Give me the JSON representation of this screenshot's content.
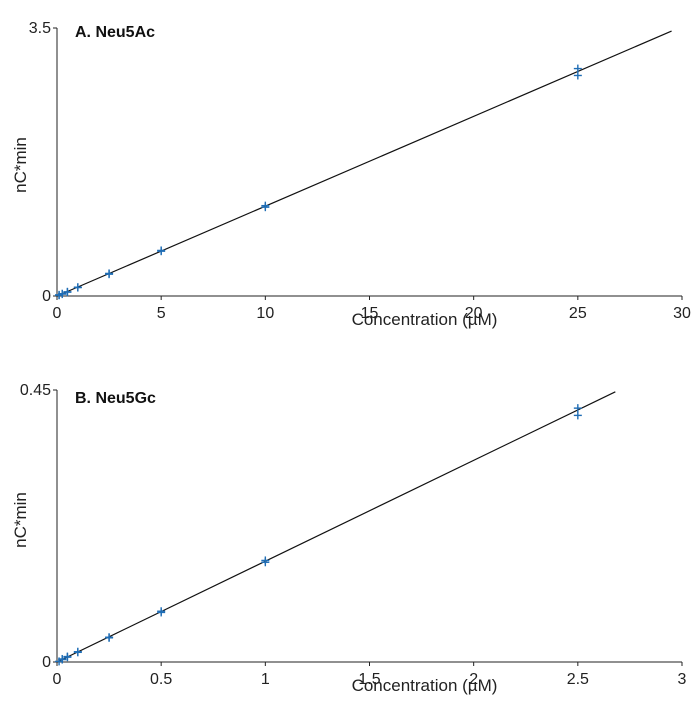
{
  "colors": {
    "marker": "#1f6db5",
    "line": "#111111",
    "axis": "#222222"
  },
  "chart_data": [
    {
      "type": "scatter",
      "title": "A. Neu5Ac",
      "xlabel": "Concentration (µM)",
      "ylabel": "nC*min",
      "xlim": [
        0,
        30
      ],
      "ylim": [
        0,
        3.5
      ],
      "x_ticks": [
        "0",
        "5",
        "10",
        "15",
        "20",
        "25",
        "30"
      ],
      "y_ticks": [
        "0",
        "3.5"
      ],
      "grid": false,
      "series": [
        {
          "x": [
            0.1,
            0.1,
            0.25,
            0.25,
            0.5,
            0.5,
            1,
            1,
            2.5,
            2.5,
            5,
            5,
            10,
            10,
            25,
            25
          ],
          "y": [
            0.01,
            0.015,
            0.025,
            0.03,
            0.05,
            0.055,
            0.11,
            0.115,
            0.285,
            0.295,
            0.585,
            0.595,
            1.16,
            1.18,
            2.88,
            2.97
          ]
        }
      ],
      "fit_line": {
        "x": [
          0,
          29.5
        ],
        "y": [
          0,
          3.46
        ]
      }
    },
    {
      "type": "scatter",
      "title": "B. Neu5Gc",
      "xlabel": "Concentration (µM)",
      "ylabel": "nC*min",
      "xlim": [
        0,
        3
      ],
      "ylim": [
        0,
        0.45
      ],
      "x_ticks": [
        "0",
        "0.5",
        "1",
        "1.5",
        "2",
        "2.5",
        "3"
      ],
      "y_ticks": [
        "0",
        "0.45"
      ],
      "grid": false,
      "series": [
        {
          "x": [
            0.01,
            0.025,
            0.025,
            0.05,
            0.05,
            0.1,
            0.1,
            0.25,
            0.25,
            0.5,
            0.5,
            1,
            1,
            2.5,
            2.5
          ],
          "y": [
            0.001,
            0.004,
            0.005,
            0.008,
            0.009,
            0.016,
            0.017,
            0.04,
            0.041,
            0.082,
            0.084,
            0.165,
            0.168,
            0.408,
            0.42
          ]
        }
      ],
      "fit_line": {
        "x": [
          0,
          2.68
        ],
        "y": [
          0,
          0.447
        ]
      }
    }
  ]
}
